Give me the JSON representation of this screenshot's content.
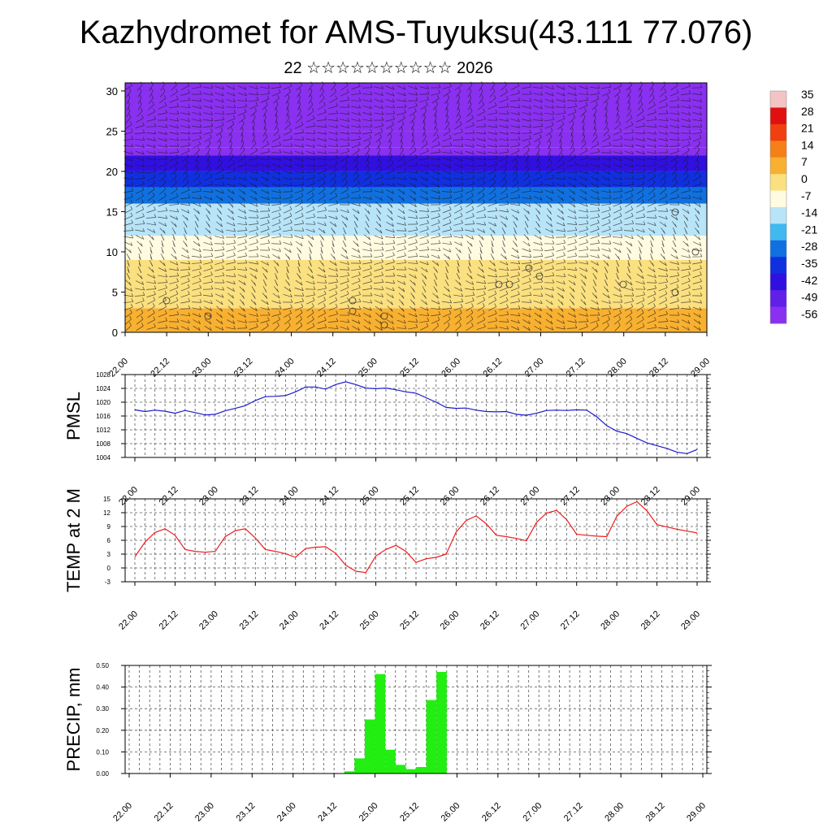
{
  "header": {
    "title": "Kazhydromet for AMS-Tuyuksu(43.111 77.076)",
    "subtitle": "22 ☆☆☆☆☆☆☆☆☆☆ 2026"
  },
  "colors": {
    "pmsl_line": "#1a1acc",
    "temp_line": "#ee1c1c",
    "precip_bar": "#22ee11",
    "grid": "#555555"
  },
  "chart_data": [
    {
      "id": "cross-section",
      "type": "heatmap",
      "title": "",
      "x_tick_labels": [
        "22.00",
        "22.12",
        "23.00",
        "23.12",
        "24.00",
        "24.12",
        "25.00",
        "25.12",
        "26.00",
        "26.12",
        "27.00",
        "27.12",
        "28.00",
        "28.12",
        "29.00"
      ],
      "y_ticks": [
        0,
        5,
        10,
        15,
        20,
        25,
        30
      ],
      "ylim": [
        0,
        31
      ],
      "temperature_bands": [
        {
          "bottom": 0,
          "top": 3,
          "temp": 7
        },
        {
          "bottom": 3,
          "top": 6,
          "temp": 3
        },
        {
          "bottom": 6,
          "top": 9,
          "temp": 0
        },
        {
          "bottom": 9,
          "top": 12,
          "temp": -6
        },
        {
          "bottom": 12,
          "top": 14,
          "temp": -12
        },
        {
          "bottom": 14,
          "top": 16,
          "temp": -17
        },
        {
          "bottom": 16,
          "top": 18,
          "temp": -25
        },
        {
          "bottom": 18,
          "top": 20,
          "temp": -35
        },
        {
          "bottom": 20,
          "top": 22,
          "temp": -45
        },
        {
          "bottom": 22,
          "top": 23,
          "temp": -55
        },
        {
          "bottom": 23,
          "top": 25,
          "temp": -60
        },
        {
          "bottom": 25,
          "top": 31,
          "temp": -55
        }
      ],
      "colorbar": {
        "labels": [
          "35",
          "28",
          "21",
          "14",
          "7",
          "0",
          "-7",
          "-14",
          "-21",
          "-28",
          "-35",
          "-42",
          "-49",
          "-56"
        ],
        "stops": [
          "#f4c4c4",
          "#e01010",
          "#f04010",
          "#f58018",
          "#f8b030",
          "#fbe080",
          "#fffbe0",
          "#b8e4f8",
          "#40b8f0",
          "#1070e0",
          "#1030e0",
          "#3010e0",
          "#6020e8",
          "#8a30f0"
        ]
      }
    },
    {
      "id": "pmsl",
      "type": "line",
      "ylabel": "PMSL",
      "ylim": [
        1004,
        1028
      ],
      "y_ticks": [
        1004,
        1008,
        1012,
        1016,
        1020,
        1024,
        1028
      ],
      "x_tick_labels": [
        "22.00",
        "22.12",
        "23.00",
        "23.12",
        "24.00",
        "24.12",
        "25.00",
        "25.12",
        "26.00",
        "26.12",
        "27.00",
        "27.12",
        "28.00",
        "28.12",
        "29.00"
      ],
      "x": [
        0,
        0.125,
        0.25,
        0.375,
        0.5,
        0.625,
        0.75,
        0.875,
        1,
        1.125,
        1.25,
        1.375,
        1.5,
        1.625,
        1.75,
        1.875,
        2,
        2.125,
        2.25,
        2.375,
        2.5,
        2.625,
        2.75,
        2.875,
        3,
        3.125,
        3.25,
        3.375,
        3.5,
        3.625,
        3.75,
        3.875,
        4,
        4.125,
        4.25,
        4.375,
        4.5,
        4.625,
        4.75,
        4.875,
        5,
        5.125,
        5.25,
        5.375,
        5.5,
        5.625,
        5.75,
        5.875,
        6,
        6.125,
        6.25,
        6.375,
        6.5,
        6.625,
        6.75,
        6.875,
        7
      ],
      "series": [
        {
          "name": "PMSL",
          "values": [
            1017.8,
            1017.3,
            1017.7,
            1017.4,
            1016.8,
            1017.6,
            1017.0,
            1016.3,
            1016.5,
            1017.5,
            1018.2,
            1019.0,
            1020.5,
            1021.6,
            1021.7,
            1021.9,
            1023.0,
            1024.4,
            1024.4,
            1023.8,
            1025.1,
            1025.9,
            1025.1,
            1024.1,
            1023.9,
            1024.1,
            1023.6,
            1023.0,
            1022.6,
            1021.3,
            1020.0,
            1018.5,
            1018.2,
            1018.3,
            1017.7,
            1017.3,
            1017.2,
            1017.3,
            1016.5,
            1016.2,
            1016.8,
            1017.6,
            1017.7,
            1017.6,
            1017.8,
            1017.7,
            1015.8,
            1013.2,
            1011.6,
            1010.9,
            1009.5,
            1008.2,
            1007.4,
            1006.6,
            1005.5,
            1005.1,
            1006.3
          ]
        }
      ]
    },
    {
      "id": "temp2m",
      "type": "line",
      "ylabel": "TEMP at 2 M",
      "ylim": [
        -3,
        15
      ],
      "y_ticks": [
        -3,
        0,
        3,
        6,
        9,
        12,
        15
      ],
      "x_tick_labels": [
        "22.00",
        "22.12",
        "23.00",
        "23.12",
        "24.00",
        "24.12",
        "25.00",
        "25.12",
        "26.00",
        "26.12",
        "27.00",
        "27.12",
        "28.00",
        "28.12",
        "29.00"
      ],
      "x": [
        0,
        0.125,
        0.25,
        0.375,
        0.5,
        0.625,
        0.75,
        0.875,
        1,
        1.125,
        1.25,
        1.375,
        1.5,
        1.625,
        1.75,
        1.875,
        2,
        2.125,
        2.25,
        2.375,
        2.5,
        2.625,
        2.75,
        2.875,
        3,
        3.125,
        3.25,
        3.375,
        3.5,
        3.625,
        3.75,
        3.875,
        4,
        4.125,
        4.25,
        4.375,
        4.5,
        4.625,
        4.75,
        4.875,
        5,
        5.125,
        5.25,
        5.375,
        5.5,
        5.625,
        5.75,
        5.875,
        6,
        6.125,
        6.25,
        6.375,
        6.5,
        6.625,
        6.75,
        6.875,
        7
      ],
      "series": [
        {
          "name": "TEMP at 2 M",
          "values": [
            2.4,
            5.6,
            7.7,
            8.5,
            7.1,
            4.0,
            3.6,
            3.4,
            3.6,
            6.8,
            8.1,
            8.5,
            6.5,
            4.0,
            3.6,
            3.1,
            2.3,
            4.2,
            4.5,
            4.6,
            3.2,
            0.6,
            -0.7,
            -1.0,
            2.6,
            4.0,
            4.9,
            3.6,
            1.2,
            2.0,
            2.3,
            3.0,
            7.8,
            10.3,
            11.3,
            9.6,
            7.1,
            6.8,
            6.4,
            5.9,
            9.9,
            11.9,
            12.5,
            10.5,
            7.3,
            7.1,
            6.9,
            6.8,
            11.2,
            13.4,
            14.4,
            12.4,
            9.4,
            8.9,
            8.4,
            8.0,
            7.6
          ]
        }
      ]
    },
    {
      "id": "precip",
      "type": "bar",
      "ylabel": "PRECIP, mm",
      "ylim": [
        0,
        0.5
      ],
      "y_tick_labels": [
        "0.00",
        "0.10",
        "0.20",
        "0.30",
        "0.40",
        "0.50"
      ],
      "x_tick_labels": [
        "22.00",
        "22.12",
        "23.00",
        "23.12",
        "24.00",
        "24.12",
        "25.00",
        "25.12",
        "26.00",
        "26.12",
        "27.00",
        "27.12",
        "28.00",
        "28.12",
        "29.00"
      ],
      "bar_start": [
        2.625,
        2.75,
        2.875,
        3.0,
        3.125,
        3.25,
        3.375,
        3.5,
        3.625,
        3.75,
        3.875
      ],
      "values": [
        0.01,
        0.07,
        0.25,
        0.46,
        0.11,
        0.04,
        0.02,
        0.03,
        0.34,
        0.47,
        0.0
      ]
    }
  ]
}
